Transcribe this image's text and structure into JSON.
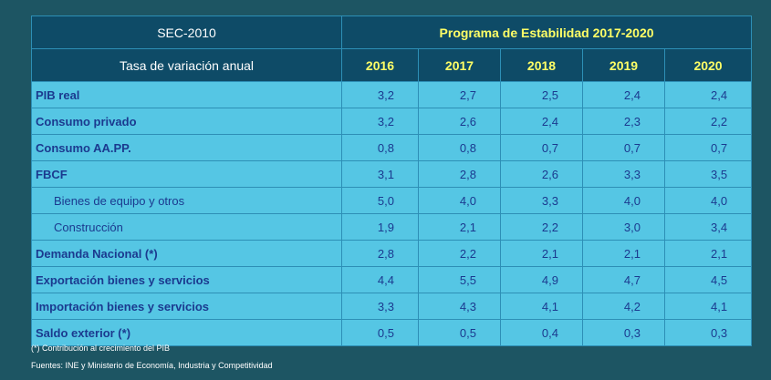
{
  "table": {
    "header_left_top": "SEC-2010",
    "header_left_bottom": "Tasa de variación anual",
    "program_title": "Programa de Estabilidad 2017-2020",
    "years": [
      "2016",
      "2017",
      "2018",
      "2019",
      "2020"
    ],
    "rows": [
      {
        "label": "PIB real",
        "indent": false,
        "values": [
          "3,2",
          "2,7",
          "2,5",
          "2,4",
          "2,4"
        ]
      },
      {
        "label": "Consumo privado",
        "indent": false,
        "values": [
          "3,2",
          "2,6",
          "2,4",
          "2,3",
          "2,2"
        ]
      },
      {
        "label": "Consumo  AA.PP.",
        "indent": false,
        "values": [
          "0,8",
          "0,8",
          "0,7",
          "0,7",
          "0,7"
        ]
      },
      {
        "label": "FBCF",
        "indent": false,
        "values": [
          "3,1",
          "2,8",
          "2,6",
          "3,3",
          "3,5"
        ]
      },
      {
        "label": "Bienes de equipo y otros",
        "indent": true,
        "values": [
          "5,0",
          "4,0",
          "3,3",
          "4,0",
          "4,0"
        ]
      },
      {
        "label": "Construcción",
        "indent": true,
        "values": [
          "1,9",
          "2,1",
          "2,2",
          "3,0",
          "3,4"
        ]
      },
      {
        "label": "Demanda Nacional  (*)",
        "indent": false,
        "values": [
          "2,8",
          "2,2",
          "2,1",
          "2,1",
          "2,1"
        ]
      },
      {
        "label": "Exportación bienes y servicios",
        "indent": false,
        "values": [
          "4,4",
          "5,5",
          "4,9",
          "4,7",
          "4,5"
        ]
      },
      {
        "label": "Importación bienes y servicios",
        "indent": false,
        "values": [
          "3,3",
          "4,3",
          "4,1",
          "4,2",
          "4,1"
        ]
      },
      {
        "label": "Saldo exterior  (*)",
        "indent": false,
        "values": [
          "0,5",
          "0,5",
          "0,4",
          "0,3",
          "0,3"
        ]
      }
    ]
  },
  "notes": {
    "footnote": "(*) Contribución al crecimiento del PIB",
    "sources": "Fuentes: INE y Ministerio de Economía, Industria y Competitividad"
  },
  "colors": {
    "background": "#1d5563",
    "header_bg": "#0e4b67",
    "header_accent": "#ffff66",
    "row_bg": "#55c6e4",
    "row_text": "#1b3a8f"
  }
}
